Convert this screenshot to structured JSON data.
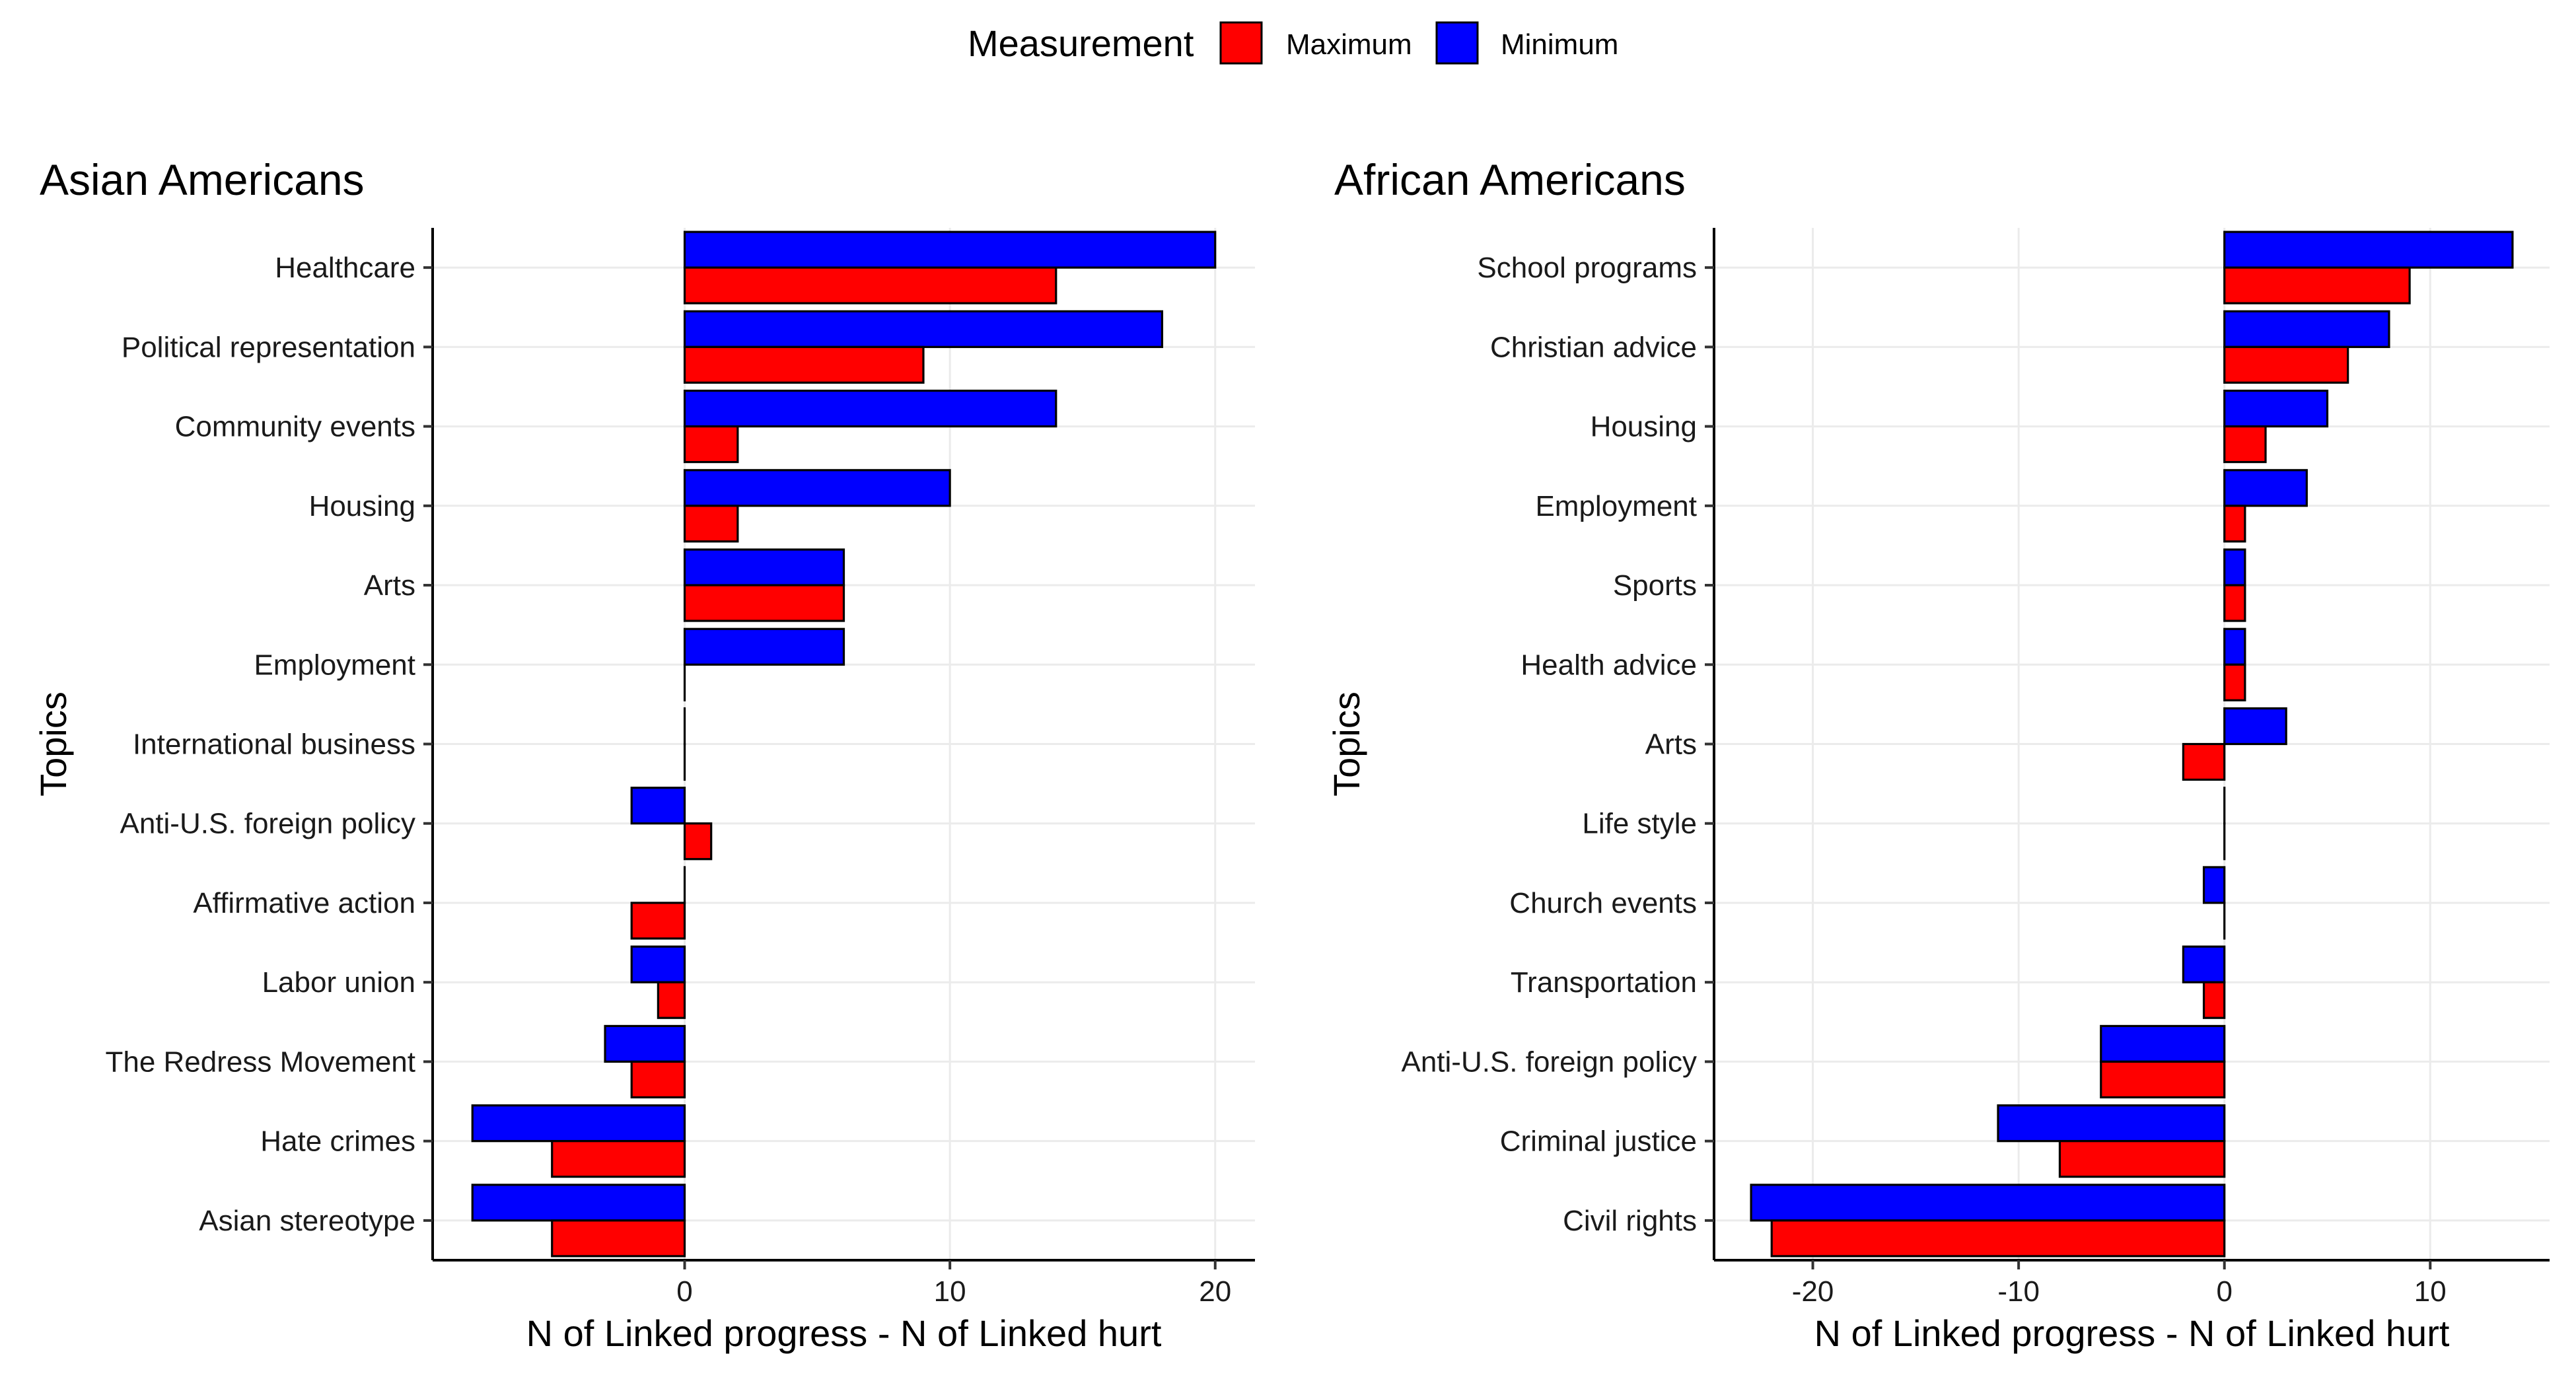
{
  "legend": {
    "title": "Measurement",
    "items": [
      {
        "label": "Maximum",
        "color": "#FF0000"
      },
      {
        "label": "Minimum",
        "color": "#0000FF"
      }
    ]
  },
  "chart_data": [
    {
      "type": "bar",
      "orientation": "horizontal",
      "title": "Asian Americans",
      "xlabel": "N of Linked progress - N of Linked hurt",
      "ylabel": "Topics",
      "xlim": [
        -9.5,
        21.5
      ],
      "xticks": [
        0,
        10,
        20
      ],
      "grid": true,
      "categories": [
        "Healthcare",
        "Political representation",
        "Community events",
        "Housing",
        "Arts",
        "Employment",
        "International business",
        "Anti-U.S. foreign policy",
        "Affirmative action",
        "Labor union",
        "The Redress Movement",
        "Hate crimes",
        "Asian stereotype"
      ],
      "series": [
        {
          "name": "Minimum",
          "color": "#0000FF",
          "values": [
            20,
            18,
            14,
            10,
            6,
            6,
            0,
            -2,
            0,
            -2,
            -3,
            -8,
            -8
          ]
        },
        {
          "name": "Maximum",
          "color": "#FF0000",
          "values": [
            14,
            9,
            2,
            2,
            6,
            0,
            0,
            1,
            -2,
            -1,
            -2,
            -5,
            -5
          ]
        }
      ]
    },
    {
      "type": "bar",
      "orientation": "horizontal",
      "title": "African Americans",
      "xlabel": "N of Linked progress - N of Linked hurt",
      "ylabel": "Topics",
      "xlim": [
        -24.8,
        15.8
      ],
      "xticks": [
        -20,
        -10,
        0,
        10
      ],
      "grid": true,
      "categories": [
        "School programs",
        "Christian advice",
        "Housing",
        "Employment",
        "Sports",
        "Health advice",
        "Arts",
        "Life style",
        "Church events",
        "Transportation",
        "Anti-U.S. foreign policy",
        "Criminal justice",
        "Civil rights"
      ],
      "series": [
        {
          "name": "Minimum",
          "color": "#0000FF",
          "values": [
            14,
            8,
            5,
            4,
            1,
            1,
            3,
            0,
            -1,
            -2,
            -6,
            -11,
            -23
          ]
        },
        {
          "name": "Maximum",
          "color": "#FF0000",
          "values": [
            9,
            6,
            2,
            1,
            1,
            1,
            -2,
            0,
            0,
            -1,
            -6,
            -8,
            -22
          ]
        }
      ]
    }
  ]
}
